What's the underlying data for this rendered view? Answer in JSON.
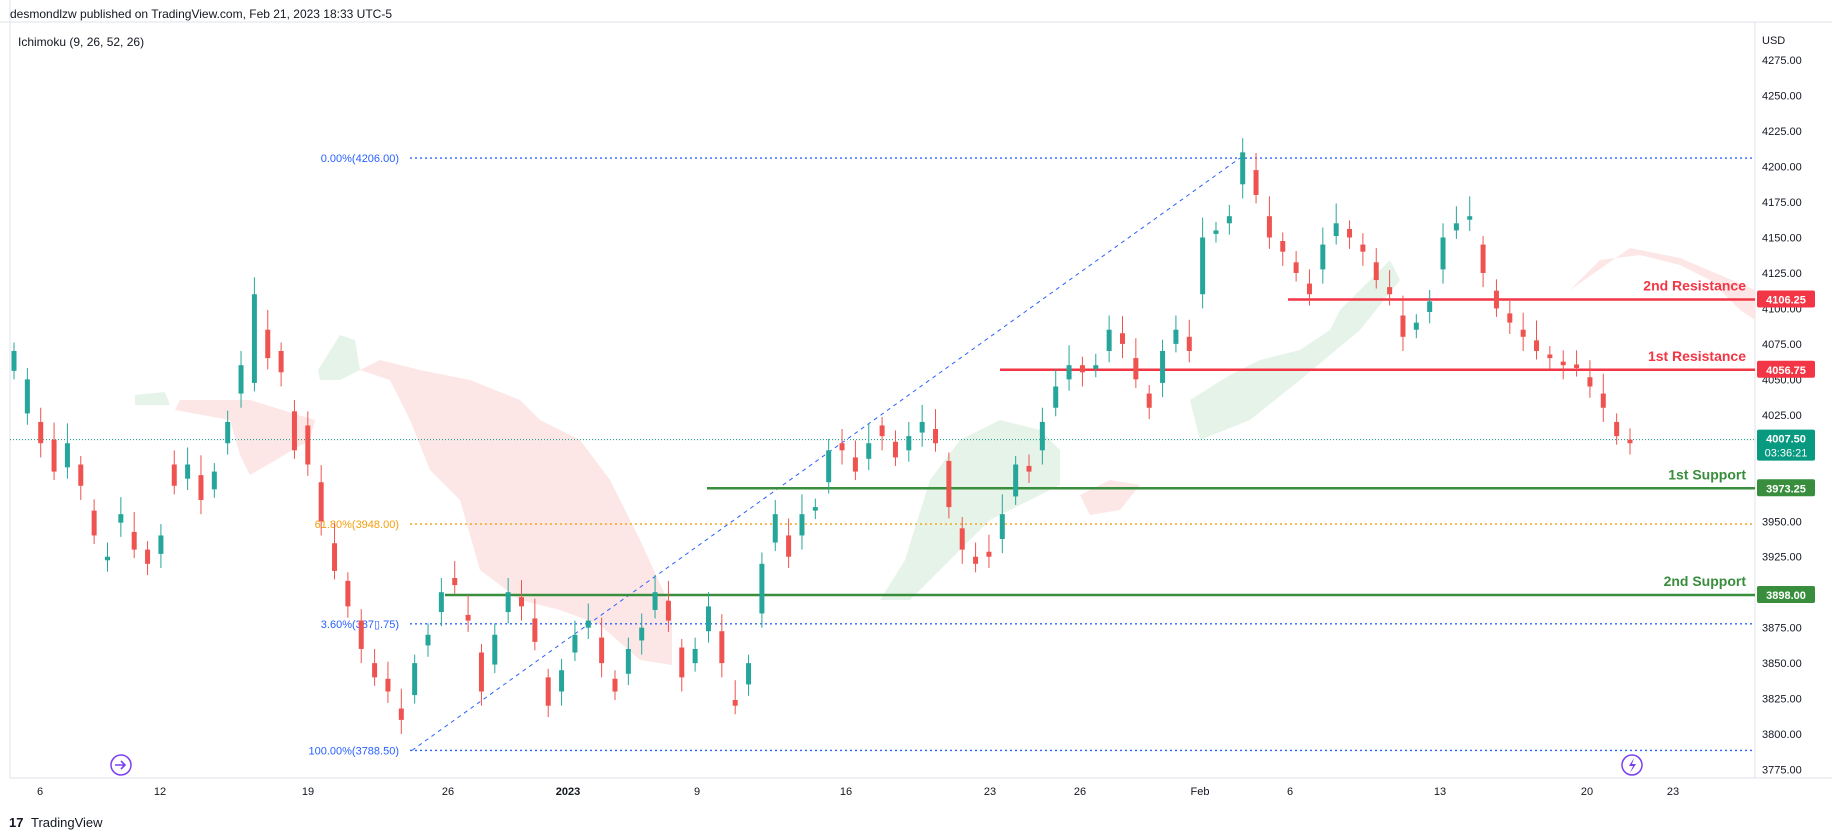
{
  "header": {
    "published": "desmondlzw published on TradingView.com, Feb 21, 2023 18:33 UTC-5",
    "indicator": "Ichimoku (9, 26, 52, 26)",
    "currency": "USD"
  },
  "footer": {
    "brand": "TradingView",
    "logo_mark": "17"
  },
  "colors": {
    "up": "#26a69a",
    "down": "#ef5350",
    "resistance": "#f23645",
    "support": "#388e3c",
    "fib_blue": "#2962ff",
    "fib_orange": "#f59e0b",
    "kumo_green": "#e3f2e5",
    "kumo_red": "#fde3e3",
    "last_price": "#089981",
    "icon_purple": "#7b3ff2"
  },
  "chart_data": {
    "type": "candlestick",
    "ylim": [
      3762,
      4292
    ],
    "y_ticks": [
      "4275.00",
      "4250.00",
      "4225.00",
      "4200.00",
      "4175.00",
      "4150.00",
      "4125.00",
      "4100.00",
      "4075.00",
      "4050.00",
      "4025.00",
      "4000.00",
      "3975.00",
      "3950.00",
      "3925.00",
      "3900.00",
      "3875.00",
      "3850.00",
      "3825.00",
      "3800.00",
      "3775.00"
    ],
    "x_ticks": [
      "6",
      "12",
      "19",
      "26",
      "2023",
      "9",
      "16",
      "23",
      "26",
      "Feb",
      "6",
      "13",
      "20",
      "23"
    ],
    "fib_levels": [
      {
        "label": "0.00%(4206.00)",
        "value": 4206.0,
        "color": "blue"
      },
      {
        "label": "61.80%(3948.00)",
        "value": 3948.0,
        "color": "orange"
      },
      {
        "label": "78.60%(3877.75)",
        "shown": "3.60%(387▯.75)",
        "value": 3877.75,
        "color": "blue"
      },
      {
        "label": "100.00%(3788.50)",
        "value": 3788.5,
        "color": "blue"
      }
    ],
    "levels": [
      {
        "name": "2nd Resistance",
        "value": 4106.25,
        "value_label": "4106.25",
        "kind": "resistance"
      },
      {
        "name": "1st Resistance",
        "value": 4056.75,
        "value_label": "4056.75",
        "kind": "resistance"
      },
      {
        "name": "1st Support",
        "value": 3973.25,
        "value_label": "3973.25",
        "kind": "support"
      },
      {
        "name": "2nd Support",
        "value": 3898.0,
        "value_label": "3898.00",
        "kind": "support"
      }
    ],
    "last_price": {
      "value": 4007.5,
      "label": "4007.50",
      "countdown": "03:36:21"
    },
    "path_points": [
      [
        4070,
        4050,
        4005,
        3985,
        4005,
        3975,
        3940,
        3925,
        3955,
        3930,
        3920,
        3940,
        3975,
        3990,
        3965,
        3985,
        4020,
        4060,
        4110,
        4065,
        4055,
        4000,
        3990,
        3950,
        3915,
        3890,
        3860,
        3840,
        3830,
        3810,
        3850,
        3870,
        3900,
        3905,
        3880,
        3830,
        3870,
        3900,
        3890,
        3865,
        3820,
        3845,
        3870,
        3880,
        3850,
        3830,
        3860,
        3875,
        3900,
        3880,
        3840,
        3860,
        3890,
        3850,
        3820,
        3850,
        3920,
        3955,
        3925,
        3955,
        3960,
        4000,
        4000,
        3985,
        4005,
        4010,
        3995,
        4010,
        4020,
        4005,
        3960,
        3930,
        3920,
        3925,
        3955,
        3990,
        3985,
        4020,
        4045,
        4060,
        4055,
        4060,
        4085,
        4075,
        4050,
        4030,
        4070,
        4085,
        4070,
        4150,
        4155,
        4165,
        4210,
        4180,
        4150,
        4140,
        4125,
        4110,
        4145,
        4160,
        4150,
        4140,
        4120,
        4110,
        4080,
        4090,
        4105,
        4150,
        4160,
        4165,
        4125,
        4100,
        4090,
        4080,
        4070,
        4065,
        4060,
        4058,
        4045,
        4030,
        4010,
        4005
      ],
      [
        28,
        48,
        -30,
        -45,
        34,
        -30,
        -35,
        5,
        12,
        -25,
        -20,
        26,
        -30,
        20,
        -35,
        25,
        30,
        40,
        125,
        -40,
        -30,
        -55,
        -55,
        -55,
        -39,
        -36,
        -40,
        -20,
        -18,
        -16,
        45,
        15,
        28,
        -10,
        -8,
        -55,
        42,
        28,
        -13,
        -33,
        -40,
        30,
        25,
        10,
        -36,
        -18,
        35,
        18,
        25,
        -28,
        -42,
        20,
        35,
        -45,
        -8,
        30,
        70,
        40,
        -30,
        30,
        5,
        45,
        -10,
        -20,
        22,
        -15,
        -22,
        20,
        15,
        -20,
        -65,
        -30,
        -10,
        -7,
        35,
        45,
        -8,
        40,
        30,
        20,
        -10,
        5,
        30,
        -15,
        -30,
        -20,
        45,
        20,
        -20,
        80,
        5,
        10,
        45,
        -35,
        -30,
        -15,
        -15,
        -15,
        35,
        18,
        -12,
        -10,
        -25,
        -10,
        -30,
        10,
        15,
        45,
        10,
        5,
        -40,
        -25,
        -13,
        -10,
        -15,
        -5,
        -5,
        -5,
        -13,
        -20,
        -20,
        -5
      ]
    ]
  }
}
